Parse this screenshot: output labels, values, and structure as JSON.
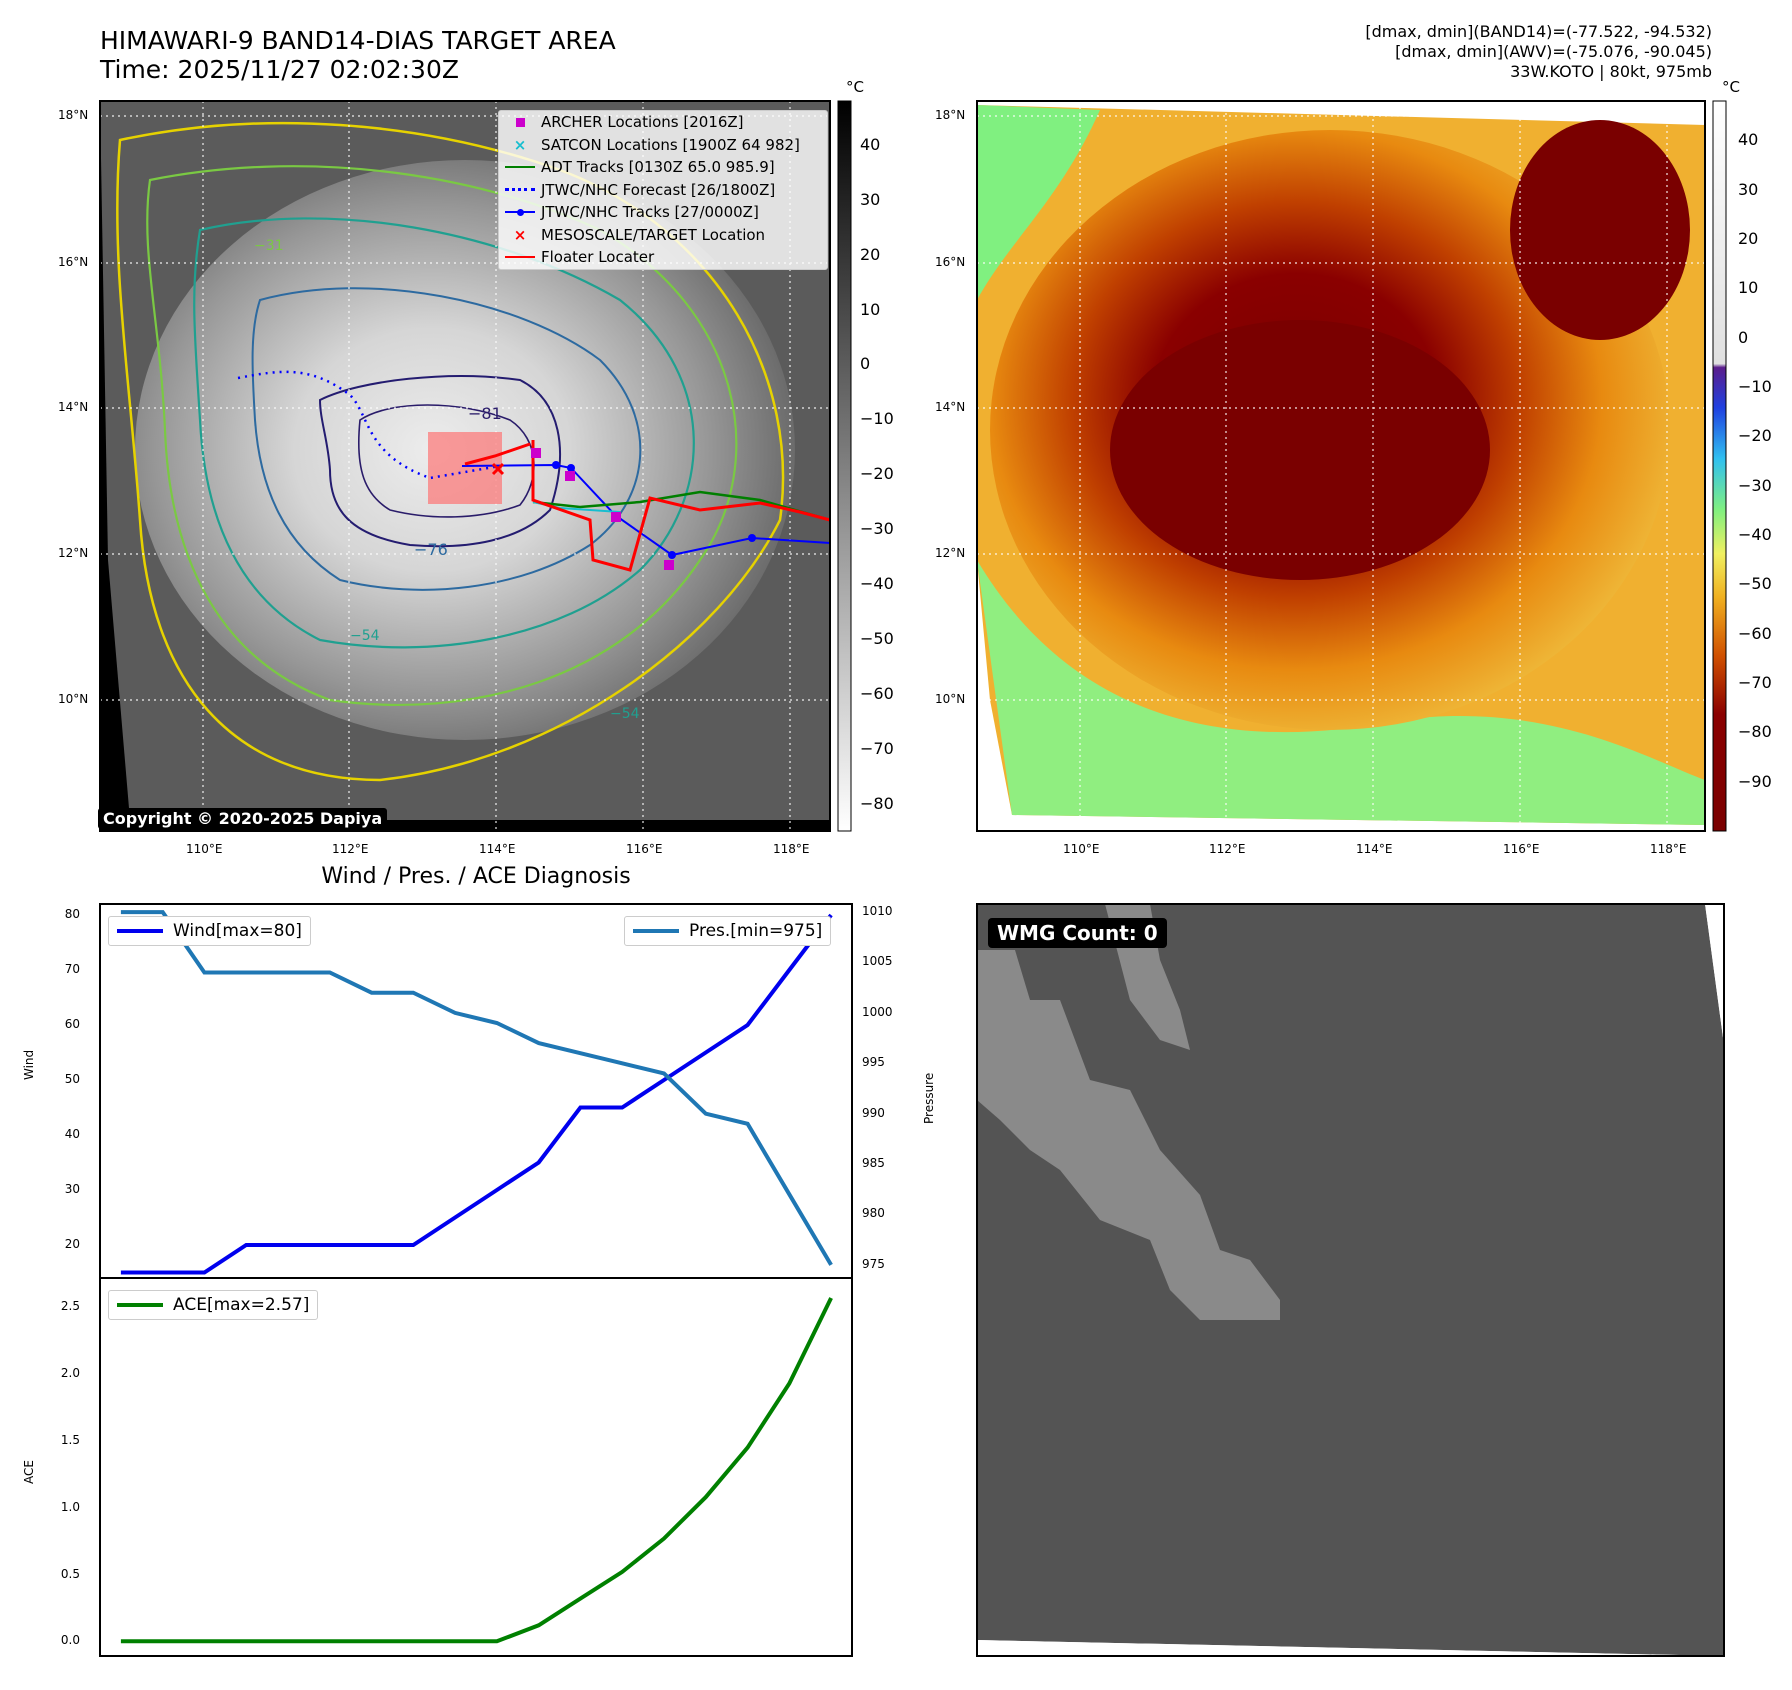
{
  "header": {
    "title_line1": "HIMAWARI-9 BAND14-DIAS TARGET AREA",
    "title_line2": "Time: 2025/11/27 02:02:30Z",
    "info_line1": "[dmax, dmin](BAND14)=(-77.522, -94.532)",
    "info_line2": "[dmax, dmin](AWV)=(-75.076, -90.045)",
    "info_line3": "33W.KOTO | 80kt, 975mb"
  },
  "map_left": {
    "lat_ticks": [
      "18°N",
      "16°N",
      "14°N",
      "12°N",
      "10°N"
    ],
    "lon_ticks": [
      "110°E",
      "112°E",
      "114°E",
      "116°E",
      "118°E"
    ],
    "contour_labels": [
      "−81",
      "−76",
      "−54",
      "−54",
      "−31"
    ],
    "colorbar_unit": "°C",
    "colorbar_ticks": [
      "40",
      "30",
      "20",
      "10",
      "0",
      "−10",
      "−20",
      "−30",
      "−40",
      "−50",
      "−60",
      "−70",
      "−80"
    ],
    "legend": [
      {
        "label": "ARCHER Locations [2016Z]",
        "symbol": "square",
        "color": "#cc00cc"
      },
      {
        "label": "SATCON Locations [1900Z 64 982]",
        "symbol": "x",
        "color": "#17becf"
      },
      {
        "label": "ADT Tracks [0130Z 65.0 985.9]",
        "symbol": "line",
        "color": "#007f00"
      },
      {
        "label": "JTWC/NHC Forecast [26/1800Z]",
        "symbol": "dotted",
        "color": "#0000ff"
      },
      {
        "label": "JTWC/NHC Tracks [27/0000Z]",
        "symbol": "line-dot",
        "color": "#0000ff"
      },
      {
        "label": "MESOSCALE/TARGET Location",
        "symbol": "x",
        "color": "#ff0000"
      },
      {
        "label": "Floater Locater",
        "symbol": "line",
        "color": "#ff0000"
      }
    ],
    "copyright": "Copyright © 2020-2025 Dapiya"
  },
  "map_right": {
    "lat_ticks": [
      "18°N",
      "16°N",
      "14°N",
      "12°N",
      "10°N"
    ],
    "lon_ticks": [
      "110°E",
      "112°E",
      "114°E",
      "116°E",
      "118°E"
    ],
    "colorbar_unit": "°C",
    "colorbar_ticks": [
      "40",
      "30",
      "20",
      "10",
      "0",
      "−10",
      "−20",
      "−30",
      "−40",
      "−50",
      "−60",
      "−70",
      "−80",
      "−90"
    ]
  },
  "diagnosis": {
    "title": "Wind / Pres. / ACE Diagnosis",
    "wind_ylabel": "Wind",
    "pressure_ylabel": "Pressure",
    "ace_ylabel": "ACE",
    "wind_legend": "Wind[max=80]",
    "pres_legend": "Pres.[min=975]",
    "ace_legend": "ACE[max=2.57]",
    "wind_ticks": [
      "80",
      "70",
      "60",
      "50",
      "40",
      "30",
      "20"
    ],
    "pres_ticks": [
      "1010",
      "1005",
      "1000",
      "995",
      "990",
      "985",
      "980",
      "975"
    ],
    "ace_ticks": [
      "2.5",
      "2.0",
      "1.5",
      "1.0",
      "0.5",
      "0.0"
    ]
  },
  "wmg": {
    "badge": "WMG Count: 0"
  },
  "chart_data": [
    {
      "type": "line",
      "title": "Wind / Pres. / ACE Diagnosis",
      "ylabel": "Wind",
      "ylim": [
        14,
        82
      ],
      "x": [
        0,
        1,
        2,
        3,
        4,
        5,
        6,
        7,
        8,
        9,
        10,
        11,
        12,
        13,
        14,
        15,
        16,
        17
      ],
      "series": [
        {
          "name": "Wind[max=80]",
          "color": "#0000ee",
          "values": [
            15,
            15,
            15,
            20,
            20,
            20,
            20,
            20,
            25,
            30,
            35,
            45,
            45,
            50,
            55,
            60,
            70,
            80
          ]
        }
      ]
    },
    {
      "type": "line",
      "ylabel": "Pressure",
      "ylim": [
        973.7,
        1010.8
      ],
      "x": [
        0,
        1,
        2,
        3,
        4,
        5,
        6,
        7,
        8,
        9,
        10,
        11,
        12,
        13,
        14,
        15,
        16,
        17
      ],
      "series": [
        {
          "name": "Pres.[min=975]",
          "color": "#1f77b4",
          "values": [
            1010,
            1010,
            1004,
            1004,
            1004,
            1004,
            1002,
            1002,
            1000,
            999,
            997,
            996,
            995,
            994,
            990,
            989,
            982,
            975
          ]
        }
      ]
    },
    {
      "type": "line",
      "ylabel": "ACE",
      "ylim": [
        -0.11,
        2.72
      ],
      "x": [
        0,
        1,
        2,
        3,
        4,
        5,
        6,
        7,
        8,
        9,
        10,
        11,
        12,
        13,
        14,
        15,
        16,
        17
      ],
      "series": [
        {
          "name": "ACE[max=2.57]",
          "color": "#008000",
          "values": [
            0,
            0,
            0,
            0,
            0,
            0,
            0,
            0,
            0,
            0,
            0.12,
            0.32,
            0.52,
            0.77,
            1.08,
            1.45,
            1.93,
            2.57
          ]
        }
      ]
    }
  ]
}
